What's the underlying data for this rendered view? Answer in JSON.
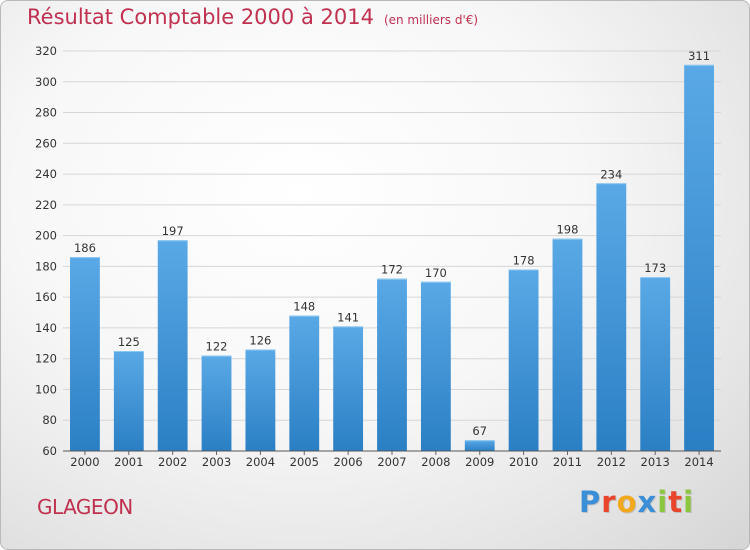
{
  "header": {
    "title": "Résultat Comptable 2000 à 2014",
    "subtitle": "(en milliers d'€)"
  },
  "footer": {
    "commune": "GLAGEON",
    "brand_letters": [
      {
        "char": "P",
        "color": "#3a8fd6"
      },
      {
        "char": "r",
        "color": "#e8452c"
      },
      {
        "char": "o",
        "color": "#f2a81d"
      },
      {
        "char": "x",
        "color": "#3a8fd6"
      },
      {
        "char": "i",
        "color": "#8cc63f"
      },
      {
        "char": "t",
        "color": "#e8452c"
      },
      {
        "char": "i",
        "color": "#8cc63f"
      }
    ]
  },
  "colors": {
    "bar_top": "#5aa9e6",
    "bar_bottom": "#2a7fc4",
    "grid": "#d6d6d6",
    "axis_text": "#333333",
    "accent": "#c0304f"
  },
  "chart_data": {
    "type": "bar",
    "categories": [
      "2000",
      "2001",
      "2002",
      "2003",
      "2004",
      "2005",
      "2006",
      "2007",
      "2008",
      "2009",
      "2010",
      "2011",
      "2012",
      "2013",
      "2014"
    ],
    "values": [
      186,
      125,
      197,
      122,
      126,
      148,
      141,
      172,
      170,
      67,
      178,
      198,
      234,
      173,
      311
    ],
    "title": "Résultat Comptable 2000 à 2014",
    "subtitle": "(en milliers d'€)",
    "xlabel": "",
    "ylabel": "",
    "ylim": [
      60,
      320
    ],
    "yticks": [
      60,
      80,
      100,
      120,
      140,
      160,
      180,
      200,
      220,
      240,
      260,
      280,
      300,
      320
    ],
    "grid": true,
    "data_labels": true
  }
}
